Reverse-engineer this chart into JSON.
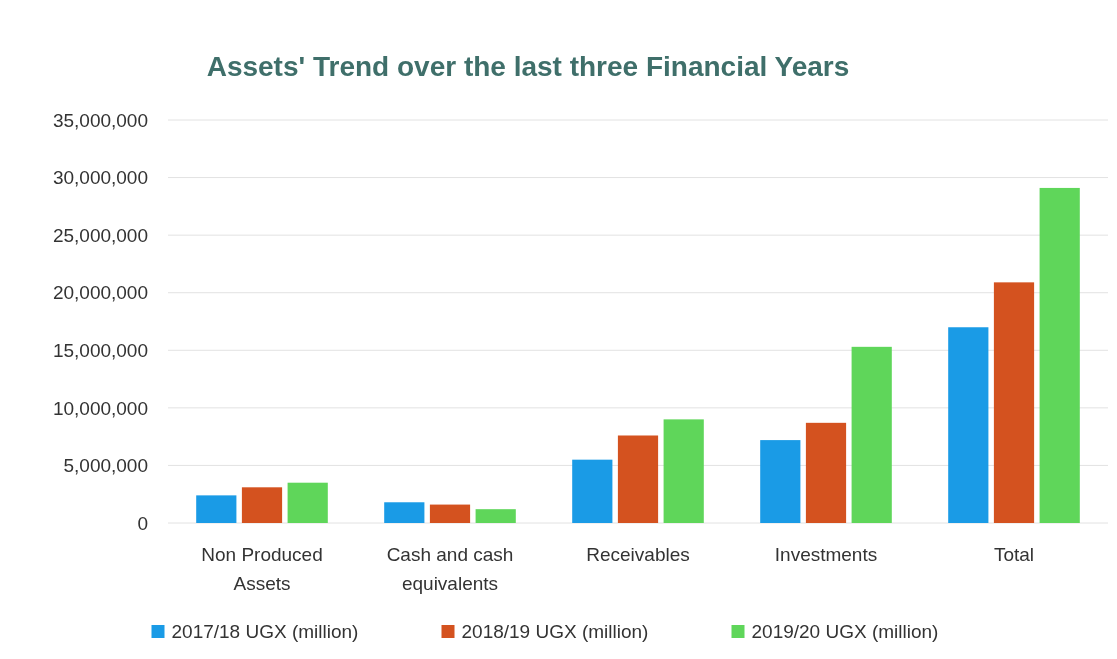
{
  "chart_data": {
    "type": "bar",
    "title": "Assets' Trend over the last three Financial Years",
    "categories": [
      "Non Produced Assets",
      "Cash and cash equivalents",
      "Receivables",
      "Investments",
      "Total"
    ],
    "series": [
      {
        "name": "2017/18 UGX (million)",
        "color": "#1a9be6",
        "values": [
          2400000,
          1800000,
          5500000,
          7200000,
          17000000
        ]
      },
      {
        "name": "2018/19 UGX (million)",
        "color": "#d4521f",
        "values": [
          3100000,
          1600000,
          7600000,
          8700000,
          20900000
        ]
      },
      {
        "name": "2019/20 UGX (million)",
        "color": "#5fd65a",
        "values": [
          3500000,
          1200000,
          9000000,
          15300000,
          29100000
        ]
      }
    ],
    "ylim": [
      0,
      35000000
    ],
    "yticks": [
      {
        "value": 0,
        "label": "0"
      },
      {
        "value": 5000000,
        "label": "5,000,000"
      },
      {
        "value": 10000000,
        "label": "10,000,000"
      },
      {
        "value": 15000000,
        "label": "15,000,000"
      },
      {
        "value": 20000000,
        "label": "20,000,000"
      },
      {
        "value": 25000000,
        "label": "25,000,000"
      },
      {
        "value": 30000000,
        "label": "30,000,000"
      },
      {
        "value": 35000000,
        "label": "35,000,000"
      }
    ],
    "grid": "y",
    "legend": "bottom"
  }
}
